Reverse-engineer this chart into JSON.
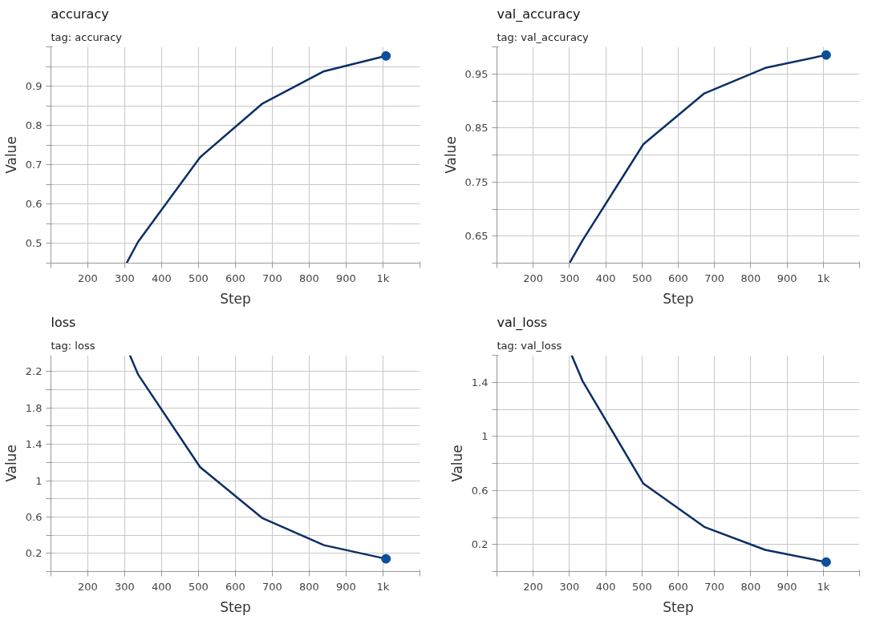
{
  "chart_data": [
    {
      "type": "line",
      "title": "accuracy",
      "subtitle": "tag: accuracy",
      "xlabel": "Step",
      "ylabel": "Value",
      "grid": true,
      "xlim": [
        100,
        1100
      ],
      "xticks": [
        {
          "value": 100,
          "label": null
        },
        200,
        300,
        400,
        500,
        600,
        700,
        800,
        900,
        {
          "value": 1000,
          "label": "1k"
        },
        {
          "value": 1100,
          "label": null
        }
      ],
      "ylim": [
        0.45,
        1.0
      ],
      "yticks": [
        {
          "value": 0.45,
          "label": null
        },
        0.5,
        {
          "value": 0.55,
          "label": null
        },
        0.6,
        {
          "value": 0.65,
          "label": null
        },
        0.7,
        {
          "value": 0.75,
          "label": null
        },
        0.8,
        {
          "value": 0.85,
          "label": null
        },
        0.9,
        {
          "value": 0.95,
          "label": null
        },
        {
          "value": 1.0,
          "label": null
        }
      ],
      "series": [
        {
          "color": "#0b2f66",
          "x": [
            305,
            336,
            504,
            672,
            840,
            1008
          ],
          "values": [
            0.45,
            0.504,
            0.719,
            0.855,
            0.938,
            0.977
          ]
        },
        {
          "type": "scatter",
          "color": "#0b4f9c",
          "marker": "circle",
          "x": [
            1008
          ],
          "values": [
            0.977
          ]
        }
      ]
    },
    {
      "type": "line",
      "title": "val_accuracy",
      "subtitle": "tag: val_accuracy",
      "xlabel": "Step",
      "ylabel": "Value",
      "grid": true,
      "xlim": [
        100,
        1100
      ],
      "xticks": [
        {
          "value": 100,
          "label": null
        },
        200,
        300,
        400,
        500,
        600,
        700,
        800,
        900,
        {
          "value": 1000,
          "label": "1k"
        },
        {
          "value": 1100,
          "label": null
        }
      ],
      "ylim": [
        0.6,
        1.0
      ],
      "yticks": [
        {
          "value": 0.6,
          "label": null
        },
        0.65,
        {
          "value": 0.7,
          "label": null
        },
        0.75,
        {
          "value": 0.8,
          "label": null
        },
        0.85,
        {
          "value": 0.9,
          "label": null
        },
        0.95,
        {
          "value": 1.0,
          "label": null
        }
      ],
      "series": [
        {
          "color": "#0b2f66",
          "x": [
            300,
            336,
            504,
            672,
            840,
            1008
          ],
          "values": [
            0.6,
            0.642,
            0.82,
            0.914,
            0.961,
            0.985
          ]
        },
        {
          "type": "scatter",
          "color": "#0b4f9c",
          "marker": "circle",
          "x": [
            1008
          ],
          "values": [
            0.985
          ]
        }
      ]
    },
    {
      "type": "line",
      "title": "loss",
      "subtitle": "tag: loss",
      "xlabel": "Step",
      "ylabel": "Value",
      "grid": true,
      "xlim": [
        100,
        1100
      ],
      "xticks": [
        {
          "value": 100,
          "label": null
        },
        200,
        300,
        400,
        500,
        600,
        700,
        800,
        900,
        {
          "value": 1000,
          "label": "1k"
        },
        {
          "value": 1100,
          "label": null
        }
      ],
      "ylim": [
        0.0,
        2.38
      ],
      "yticks": [
        {
          "value": 0.0,
          "label": null
        },
        0.2,
        {
          "value": 0.4,
          "label": null
        },
        0.6,
        {
          "value": 0.8,
          "label": null
        },
        1,
        {
          "value": 1.2,
          "label": null
        },
        1.4,
        {
          "value": 1.6,
          "label": null
        },
        1.8,
        {
          "value": 2.0,
          "label": null
        },
        2.2
      ],
      "series": [
        {
          "color": "#0b2f66",
          "x": [
            314,
            336,
            504,
            672,
            840,
            1008
          ],
          "values": [
            2.38,
            2.17,
            1.15,
            0.59,
            0.29,
            0.14
          ]
        },
        {
          "type": "scatter",
          "color": "#0b4f9c",
          "marker": "circle",
          "x": [
            1008
          ],
          "values": [
            0.14
          ]
        }
      ]
    },
    {
      "type": "line",
      "title": "val_loss",
      "subtitle": "tag: val_loss",
      "xlabel": "Step",
      "ylabel": "Value",
      "grid": true,
      "xlim": [
        100,
        1100
      ],
      "xticks": [
        {
          "value": 100,
          "label": null
        },
        200,
        300,
        400,
        500,
        600,
        700,
        800,
        900,
        {
          "value": 1000,
          "label": "1k"
        },
        {
          "value": 1100,
          "label": null
        }
      ],
      "ylim": [
        0.0,
        1.6
      ],
      "yticks": [
        {
          "value": 0.0,
          "label": null
        },
        0.2,
        {
          "value": 0.4,
          "label": null
        },
        0.6,
        {
          "value": 0.8,
          "label": null
        },
        1,
        {
          "value": 1.2,
          "label": null
        },
        1.4,
        {
          "value": 1.6,
          "label": null
        }
      ],
      "series": [
        {
          "color": "#0b2f66",
          "x": [
            306,
            336,
            504,
            672,
            840,
            1008
          ],
          "values": [
            1.6,
            1.41,
            0.65,
            0.33,
            0.16,
            0.07
          ]
        },
        {
          "type": "scatter",
          "color": "#0b4f9c",
          "marker": "circle",
          "x": [
            1008
          ],
          "values": [
            0.07
          ]
        }
      ]
    }
  ]
}
